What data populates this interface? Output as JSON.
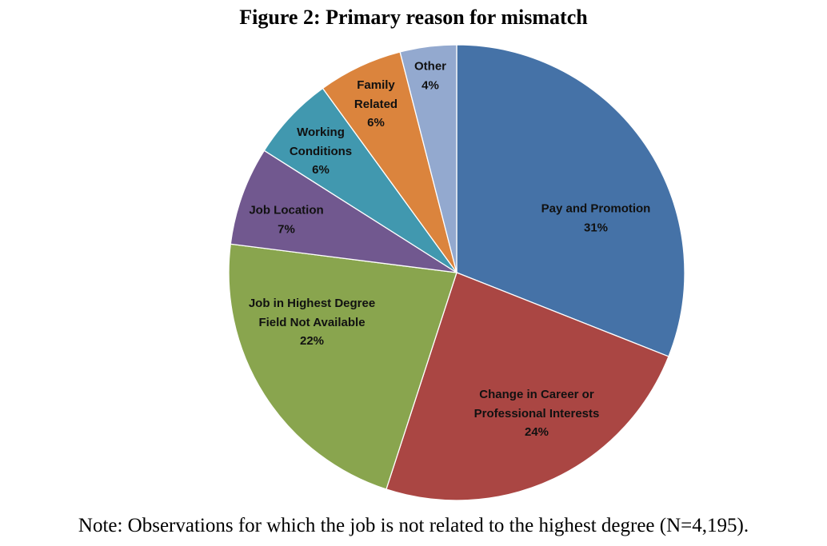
{
  "figure": {
    "note": "Note: Observations for which the job is not related to the highest degree (N=4,195)."
  },
  "chart_data": {
    "type": "pie",
    "title": "Figure 2: Primary reason for mismatch",
    "categories": [
      "Pay and Promotion",
      "Change in Career or\nProfessional Interests",
      "Job in Highest Degree\nField Not Available",
      "Job Location",
      "Working\nConditions",
      "Family\nRelated",
      "Other"
    ],
    "values": [
      31,
      24,
      22,
      7,
      6,
      6,
      4
    ],
    "data_labels": [
      "31%",
      "24%",
      "22%",
      "7%",
      "6%",
      "6%",
      "4%"
    ],
    "colors": [
      "#4572A7",
      "#AA4643",
      "#89A54E",
      "#71588F",
      "#4198AF",
      "#DB843D",
      "#93A9CF"
    ]
  }
}
